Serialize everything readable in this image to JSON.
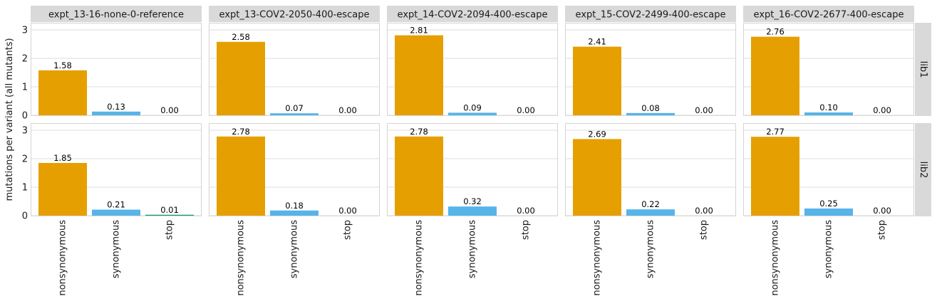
{
  "chart_data": {
    "type": "bar",
    "title": "",
    "xlabel": "",
    "ylabel": "mutations per variant (all mutants)",
    "ylim": [
      0,
      3.25
    ],
    "yticks": [
      0,
      1,
      2,
      3
    ],
    "ytick_labels": [
      "0",
      "1",
      "2",
      "3"
    ],
    "grid": true,
    "categories": [
      "nonsynonymous",
      "synonymous",
      "stop"
    ],
    "colors": {
      "nonsynonymous": "#E69F00",
      "synonymous": "#56B4E9",
      "stop": "#009E73"
    },
    "columns": [
      "expt_13-16-none-0-reference",
      "expt_13-COV2-2050-400-escape",
      "expt_14-COV2-2094-400-escape",
      "expt_15-COV2-2499-400-escape",
      "expt_16-COV2-2677-400-escape"
    ],
    "rows": [
      "lib1",
      "lib2"
    ],
    "panels": [
      {
        "row": "lib1",
        "column": "expt_13-16-none-0-reference",
        "values": [
          1.58,
          0.13,
          0.0
        ],
        "labels": [
          "1.58",
          "0.13",
          "0.00"
        ]
      },
      {
        "row": "lib1",
        "column": "expt_13-COV2-2050-400-escape",
        "values": [
          2.58,
          0.07,
          0.0
        ],
        "labels": [
          "2.58",
          "0.07",
          "0.00"
        ]
      },
      {
        "row": "lib1",
        "column": "expt_14-COV2-2094-400-escape",
        "values": [
          2.81,
          0.09,
          0.0
        ],
        "labels": [
          "2.81",
          "0.09",
          "0.00"
        ]
      },
      {
        "row": "lib1",
        "column": "expt_15-COV2-2499-400-escape",
        "values": [
          2.41,
          0.08,
          0.0
        ],
        "labels": [
          "2.41",
          "0.08",
          "0.00"
        ]
      },
      {
        "row": "lib1",
        "column": "expt_16-COV2-2677-400-escape",
        "values": [
          2.76,
          0.1,
          0.0
        ],
        "labels": [
          "2.76",
          "0.10",
          "0.00"
        ]
      },
      {
        "row": "lib2",
        "column": "expt_13-16-none-0-reference",
        "values": [
          1.85,
          0.21,
          0.01
        ],
        "labels": [
          "1.85",
          "0.21",
          "0.01"
        ]
      },
      {
        "row": "lib2",
        "column": "expt_13-COV2-2050-400-escape",
        "values": [
          2.78,
          0.18,
          0.0
        ],
        "labels": [
          "2.78",
          "0.18",
          "0.00"
        ]
      },
      {
        "row": "lib2",
        "column": "expt_14-COV2-2094-400-escape",
        "values": [
          2.78,
          0.32,
          0.0
        ],
        "labels": [
          "2.78",
          "0.32",
          "0.00"
        ]
      },
      {
        "row": "lib2",
        "column": "expt_15-COV2-2499-400-escape",
        "values": [
          2.69,
          0.22,
          0.0
        ],
        "labels": [
          "2.69",
          "0.22",
          "0.00"
        ]
      },
      {
        "row": "lib2",
        "column": "expt_16-COV2-2677-400-escape",
        "values": [
          2.77,
          0.25,
          0.0
        ],
        "labels": [
          "2.77",
          "0.25",
          "0.00"
        ]
      }
    ]
  }
}
